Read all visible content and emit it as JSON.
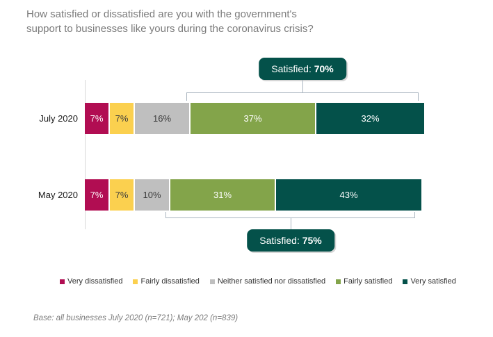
{
  "title": {
    "line1": "How satisfied or dissatisfied are you with the government's",
    "line2": "support to businesses like yours during the coronavirus crisis?"
  },
  "chart_data": {
    "type": "bar",
    "orientation": "horizontal",
    "stacked": true,
    "categories": [
      "July 2020",
      "May 2020"
    ],
    "series": [
      {
        "name": "Very dissatisfied",
        "color": "#b10d52",
        "text_color": "#ffffff",
        "values": [
          7,
          7
        ]
      },
      {
        "name": "Fairly dissatisfied",
        "color": "#fbd04f",
        "text_color": "#3d3d3d",
        "values": [
          7,
          7
        ]
      },
      {
        "name": "Neither satisfied nor dissatisfied",
        "color": "#bfbfbf",
        "text_color": "#3d3d3d",
        "values": [
          16,
          10
        ]
      },
      {
        "name": "Fairly satisfied",
        "color": "#83a44a",
        "text_color": "#ffffff",
        "values": [
          37,
          31
        ]
      },
      {
        "name": "Very satisfied",
        "color": "#04514a",
        "text_color": "#ffffff",
        "values": [
          32,
          43
        ]
      }
    ],
    "value_suffix": "%",
    "xlim": [
      0,
      100
    ],
    "grid": false,
    "legend_position": "bottom",
    "annotations": [
      {
        "target": "July 2020",
        "label": "Satisfied:",
        "value": "70%",
        "position": "above",
        "covers_series": [
          "Fairly satisfied",
          "Very satisfied"
        ]
      },
      {
        "target": "May 2020",
        "label": "Satisfied:",
        "value": "75%",
        "position": "below",
        "covers_series": [
          "Fairly satisfied",
          "Very satisfied"
        ]
      }
    ]
  },
  "footnote": "Base: all businesses July 2020 (n=721); May 202 (n=839)",
  "colors": {
    "badge_background": "#04514a",
    "bracket_line": "#a9b4bf",
    "axis_line": "#d9d9d9",
    "title_text": "#7b7b7b",
    "footnote_text": "#7d7d7d"
  }
}
